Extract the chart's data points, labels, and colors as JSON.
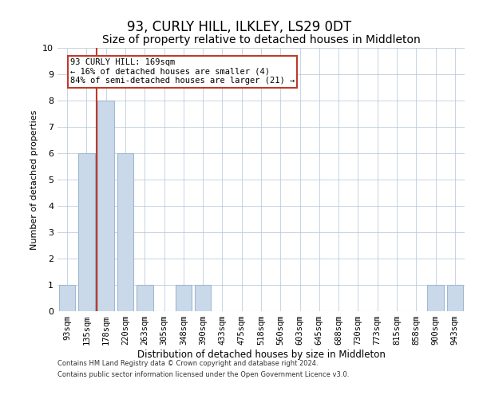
{
  "title": "93, CURLY HILL, ILKLEY, LS29 0DT",
  "subtitle": "Size of property relative to detached houses in Middleton",
  "xlabel": "Distribution of detached houses by size in Middleton",
  "ylabel": "Number of detached properties",
  "categories": [
    "93sqm",
    "135sqm",
    "178sqm",
    "220sqm",
    "263sqm",
    "305sqm",
    "348sqm",
    "390sqm",
    "433sqm",
    "475sqm",
    "518sqm",
    "560sqm",
    "603sqm",
    "645sqm",
    "688sqm",
    "730sqm",
    "773sqm",
    "815sqm",
    "858sqm",
    "900sqm",
    "943sqm"
  ],
  "values": [
    1,
    6,
    8,
    6,
    1,
    0,
    1,
    1,
    0,
    0,
    0,
    0,
    0,
    0,
    0,
    0,
    0,
    0,
    0,
    1,
    1
  ],
  "bar_color": "#c9d9ea",
  "bar_edgecolor": "#a0b8d0",
  "marker_color": "#c0392b",
  "annotation_text": "93 CURLY HILL: 169sqm\n← 16% of detached houses are smaller (4)\n84% of semi-detached houses are larger (21) →",
  "annotation_box_color": "#c0392b",
  "ylim": [
    0,
    10
  ],
  "yticks": [
    0,
    1,
    2,
    3,
    4,
    5,
    6,
    7,
    8,
    9,
    10
  ],
  "footnote1": "Contains HM Land Registry data © Crown copyright and database right 2024.",
  "footnote2": "Contains public sector information licensed under the Open Government Licence v3.0.",
  "background_color": "#ffffff",
  "grid_color": "#b0c4d8",
  "title_fontsize": 12,
  "subtitle_fontsize": 10,
  "tick_fontsize": 7.5,
  "ylabel_fontsize": 8,
  "xlabel_fontsize": 8.5
}
